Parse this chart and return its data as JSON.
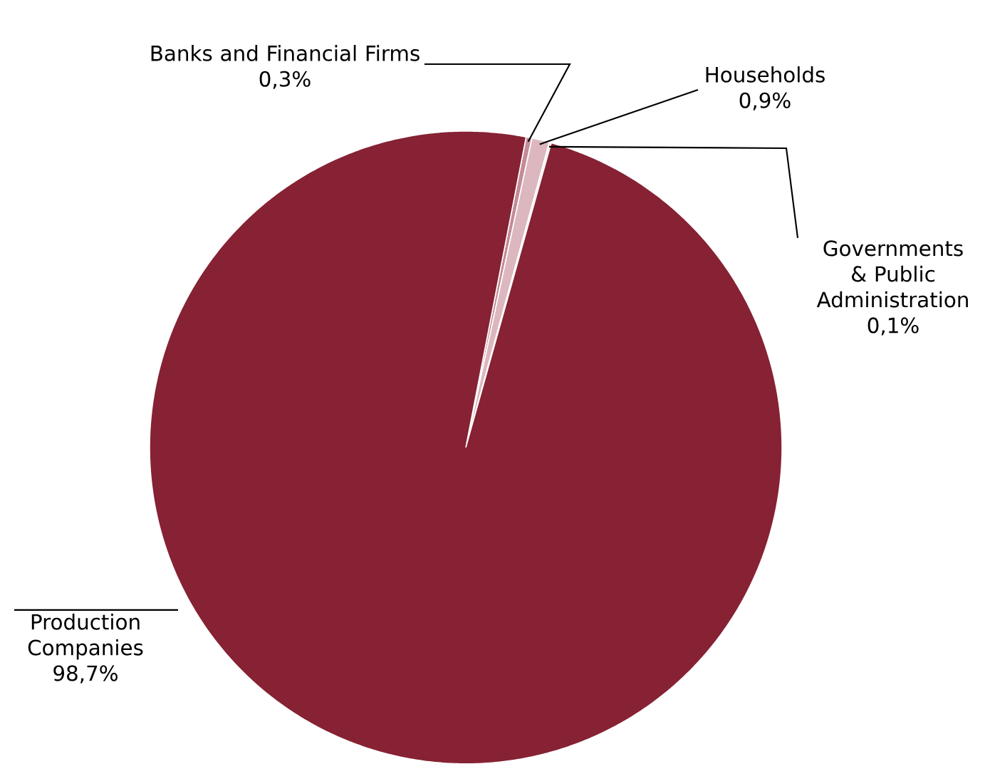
{
  "chart_data": {
    "type": "pie",
    "categories": [
      "Banks and Financial Firms",
      "Households",
      "Governments & Public Administration",
      "Production Companies"
    ],
    "values": [
      0.3,
      0.9,
      0.1,
      98.7
    ],
    "value_labels": [
      "0,3%",
      "0,9%",
      "0,1%",
      "98,7%"
    ],
    "colors": [
      "#c48b97",
      "#dcb7bf",
      "#ecdde1",
      "#862233"
    ]
  }
}
